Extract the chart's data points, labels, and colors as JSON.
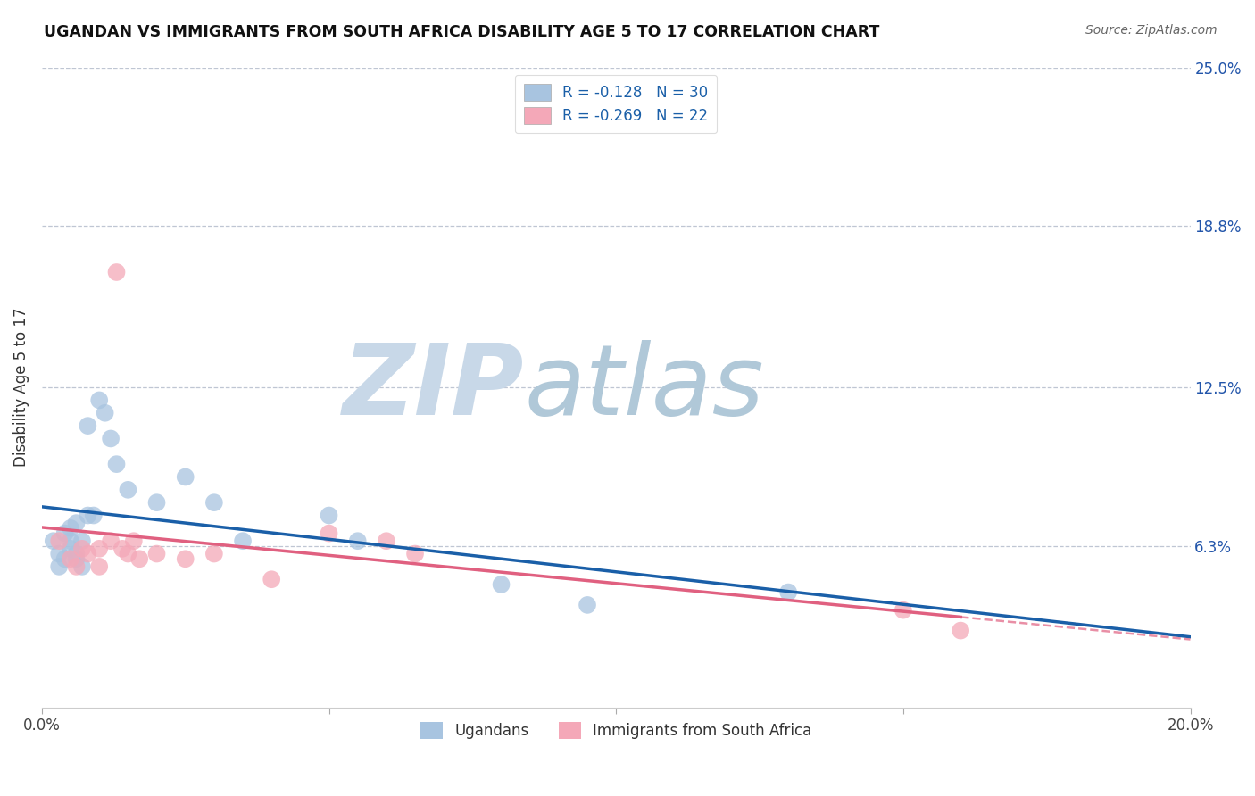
{
  "title": "UGANDAN VS IMMIGRANTS FROM SOUTH AFRICA DISABILITY AGE 5 TO 17 CORRELATION CHART",
  "source": "Source: ZipAtlas.com",
  "ylabel": "Disability Age 5 to 17",
  "xlim": [
    0.0,
    0.2
  ],
  "ylim": [
    0.0,
    0.25
  ],
  "xtick_positions": [
    0.0,
    0.05,
    0.1,
    0.15,
    0.2
  ],
  "xtick_labels": [
    "0.0%",
    "",
    "",
    "",
    "20.0%"
  ],
  "ytick_vals_right": [
    0.063,
    0.125,
    0.188,
    0.25
  ],
  "ytick_labels_right": [
    "6.3%",
    "12.5%",
    "18.8%",
    "25.0%"
  ],
  "gridline_y": [
    0.063,
    0.125,
    0.188,
    0.25
  ],
  "ugandan_color": "#a8c4e0",
  "immigrant_color": "#f4a8b8",
  "line_ugandan_color": "#1a5fa8",
  "line_immigrant_color": "#e06080",
  "watermark_zip_color": "#c8d8e8",
  "watermark_atlas_color": "#b0c8d8",
  "ugandan_x": [
    0.002,
    0.003,
    0.003,
    0.004,
    0.004,
    0.005,
    0.005,
    0.005,
    0.006,
    0.006,
    0.006,
    0.007,
    0.007,
    0.008,
    0.008,
    0.009,
    0.01,
    0.011,
    0.012,
    0.013,
    0.015,
    0.02,
    0.025,
    0.03,
    0.035,
    0.05,
    0.055,
    0.08,
    0.095,
    0.13
  ],
  "ugandan_y": [
    0.065,
    0.06,
    0.055,
    0.068,
    0.058,
    0.062,
    0.07,
    0.065,
    0.06,
    0.058,
    0.072,
    0.055,
    0.065,
    0.075,
    0.11,
    0.075,
    0.12,
    0.115,
    0.105,
    0.095,
    0.085,
    0.08,
    0.09,
    0.08,
    0.065,
    0.075,
    0.065,
    0.048,
    0.04,
    0.045
  ],
  "immigrant_x": [
    0.003,
    0.005,
    0.006,
    0.007,
    0.008,
    0.01,
    0.01,
    0.012,
    0.013,
    0.014,
    0.015,
    0.016,
    0.017,
    0.02,
    0.025,
    0.03,
    0.04,
    0.05,
    0.06,
    0.065,
    0.15,
    0.16
  ],
  "immigrant_y": [
    0.065,
    0.058,
    0.055,
    0.062,
    0.06,
    0.062,
    0.055,
    0.065,
    0.17,
    0.062,
    0.06,
    0.065,
    0.058,
    0.06,
    0.058,
    0.06,
    0.05,
    0.068,
    0.065,
    0.06,
    0.038,
    0.03
  ],
  "immigrant_data_xlim": 0.16,
  "r_ugandan": -0.128,
  "n_ugandan": 30,
  "r_immigrant": -0.269,
  "n_immigrant": 22
}
